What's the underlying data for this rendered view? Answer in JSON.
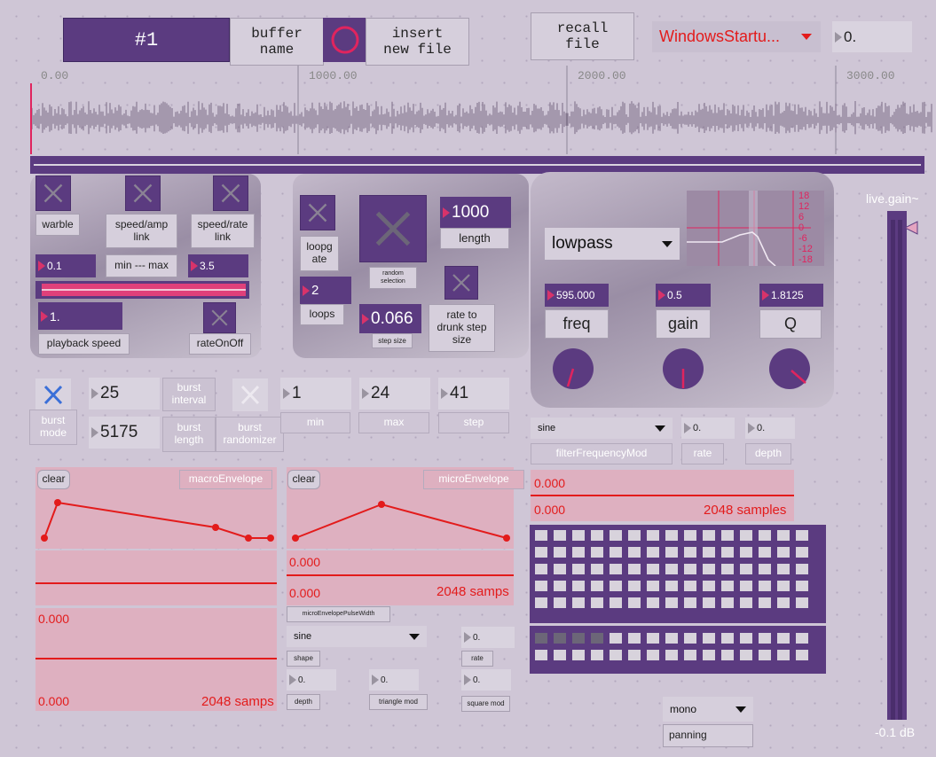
{
  "buffer": {
    "number_label": "#1",
    "name_label": "buffer\nname",
    "insert_label": "insert\nnew file",
    "recall_label": "recall\nfile",
    "file_menu": "WindowsStartu...",
    "offset_value": "0."
  },
  "waveform": {
    "ruler_ticks": [
      "0.00",
      "1000.00",
      "2000.00",
      "3000.00"
    ],
    "colors": {
      "wave": "#7a6a84",
      "cursor": "#e0245e",
      "bar": "#5b3b80"
    }
  },
  "playback": {
    "warble_label": "warble",
    "speedamp_label": "speed/amp\nlink",
    "speedrate_label": "speed/rate\nlink",
    "min_value": "0.1",
    "minmax_label": "min --- max",
    "max_value": "3.5",
    "range_low": 0.1,
    "range_high": 3.5,
    "speed_value": "1.",
    "speed_label": "playback speed",
    "rateonoff_label": "rateOnOff"
  },
  "loop": {
    "loopgate_label": "loopg\nate",
    "random_label": "random\nselection",
    "length_value": "1000",
    "length_label": "length",
    "loops_value": "2",
    "loops_label": "loops",
    "step_value": "0.066",
    "step_label": "step size",
    "drunk_label": "rate to\ndrunk step\nsize"
  },
  "filter": {
    "type_menu": "lowpass",
    "freq_value": "595.000",
    "freq_label": "freq",
    "gain_value": "0.5",
    "gain_label": "gain",
    "q_value": "1.8125",
    "q_label": "Q",
    "scale_labels": [
      "18",
      "12",
      "6",
      "0",
      "-6",
      "-12",
      "-18"
    ]
  },
  "gain": {
    "title": "live.gain~",
    "readout": "-0.1 dB"
  },
  "burst": {
    "interval_value": "25",
    "interval_label": "burst\ninterval",
    "mode_label": "burst\nmode",
    "length_value": "5175",
    "length_label": "burst\nlength",
    "randomizer_label": "burst\nrandomizer",
    "min_value": "1",
    "min_label": "min",
    "max_value": "24",
    "max_label": "max",
    "step_value": "41",
    "step_label": "step"
  },
  "filtermod": {
    "shape_menu": "sine",
    "rate_value": "0.",
    "depth_value": "0.",
    "mod_label": "filterFrequencyMod",
    "rate_label": "rate",
    "depth_label": "depth",
    "top_value": "0.000",
    "bottom_value": "0.000",
    "samples_label": "2048 samples"
  },
  "macro": {
    "clear_label": "clear",
    "title": "macroEnvelope",
    "top_value": "0.000",
    "bottom_value": "0.000",
    "samps_label": "2048 samps"
  },
  "micro": {
    "clear_label": "clear",
    "title": "microEnvelope",
    "top_value": "0.000",
    "bottom_value": "0.000",
    "samps_label": "2048 samps",
    "pulsewidth_label": "microEnvelopePulseWidth",
    "shape_menu": "sine",
    "shape_label": "shape",
    "rate_value": "0.",
    "rate_label": "rate",
    "depth_value": "0.",
    "depth_label": "depth",
    "triangle_value": "0.",
    "triangle_label": "triangle mod",
    "square_value": "0.",
    "square_label": "square mod"
  },
  "panning": {
    "mode_menu": "mono",
    "label": "panning"
  }
}
